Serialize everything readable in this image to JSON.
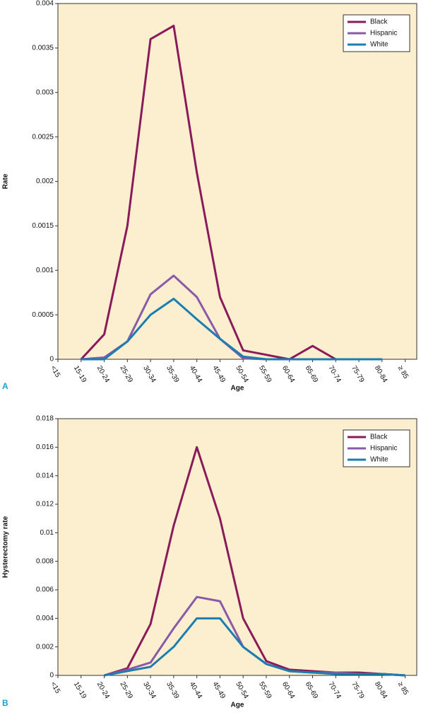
{
  "chart_data": [
    {
      "type": "line",
      "panel_label": "A",
      "x_label": "Age",
      "y_label": "Rate",
      "categories": [
        "<15",
        "15-19",
        "20-24",
        "25-29",
        "30-34",
        "35-39",
        "40-44",
        "45-49",
        "50-54",
        "55-59",
        "60-64",
        "65-69",
        "70-74",
        "75-79",
        "80-84",
        "≥ 85"
      ],
      "ylim": [
        0,
        0.004
      ],
      "yticks": [
        0,
        0.0005,
        0.001,
        0.0015,
        0.002,
        0.0025,
        0.003,
        0.0035,
        0.004
      ],
      "legend": "upper right",
      "background": "#fcefd0",
      "series": [
        {
          "name": "Black",
          "color": "#8b1a5a",
          "values": [
            null,
            0,
            0.00028,
            0.0015,
            0.0036,
            0.00375,
            0.0021,
            0.0007,
            0.0001,
            5e-05,
            0,
            0.00015,
            0,
            0,
            0,
            null
          ]
        },
        {
          "name": "Hispanic",
          "color": "#8a5aa8",
          "values": [
            null,
            0,
            2e-05,
            0.0002,
            0.00073,
            0.00094,
            0.0007,
            0.00023,
            1e-05,
            0,
            0,
            0,
            0,
            0,
            0,
            null
          ]
        },
        {
          "name": "White",
          "color": "#1b7db0",
          "values": [
            null,
            0,
            0,
            0.0002,
            0.0005,
            0.00068,
            0.00045,
            0.00023,
            3e-05,
            0,
            0,
            0,
            0,
            0,
            0,
            null
          ]
        }
      ]
    },
    {
      "type": "line",
      "panel_label": "B",
      "x_label": "Age",
      "y_label": "Hysterectomy rate",
      "categories": [
        "<15",
        "15-19",
        "20-24",
        "25-29",
        "30-34",
        "35-39",
        "40-44",
        "45-49",
        "50-54",
        "55-59",
        "60-64",
        "65-69",
        "70-74",
        "75-79",
        "80-84",
        "≥ 85"
      ],
      "ylim": [
        0,
        0.018
      ],
      "yticks": [
        0,
        0.002,
        0.004,
        0.006,
        0.008,
        0.01,
        0.012,
        0.014,
        0.016,
        0.018
      ],
      "legend": "upper right",
      "background": "#fcefd0",
      "series": [
        {
          "name": "Black",
          "color": "#8b1a5a",
          "values": [
            null,
            null,
            0,
            0.0005,
            0.0036,
            0.0105,
            0.016,
            0.011,
            0.004,
            0.001,
            0.0004,
            0.0003,
            0.0002,
            0.0002,
            0.0001,
            0
          ]
        },
        {
          "name": "Hispanic",
          "color": "#8a5aa8",
          "values": [
            null,
            null,
            0,
            0.0004,
            0.0009,
            0.0033,
            0.0055,
            0.0052,
            0.002,
            0.0008,
            0.0003,
            0.0002,
            0.0002,
            0.0001,
            0.0001,
            0
          ]
        },
        {
          "name": "White",
          "color": "#1b7db0",
          "values": [
            null,
            null,
            0,
            0.0003,
            0.0006,
            0.002,
            0.004,
            0.004,
            0.002,
            0.0008,
            0.0003,
            0.0002,
            0.0001,
            0.0001,
            0.0001,
            0
          ]
        }
      ]
    }
  ]
}
